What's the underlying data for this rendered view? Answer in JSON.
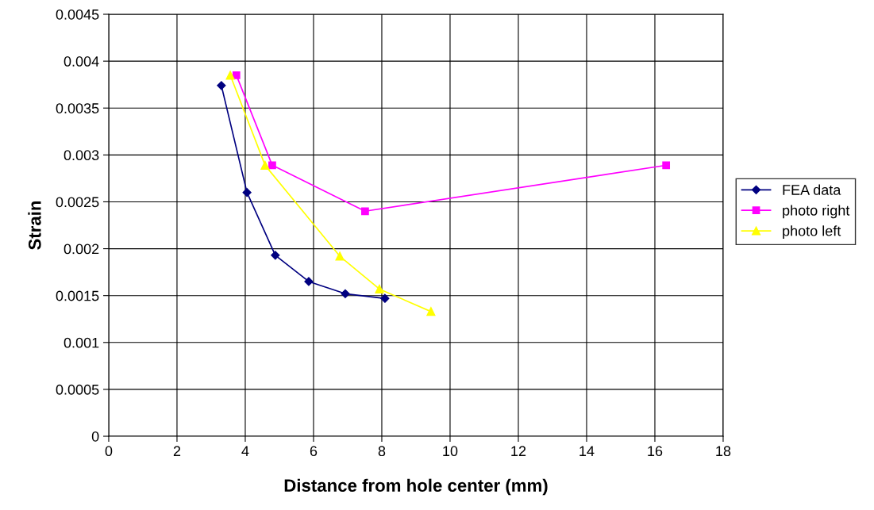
{
  "chart_data": {
    "type": "line",
    "xlabel": "Distance from hole center (mm)",
    "ylabel": "Strain",
    "xlim": [
      0,
      18
    ],
    "xticks": [
      0,
      2,
      4,
      6,
      8,
      10,
      12,
      14,
      16,
      18
    ],
    "ylim": [
      0,
      0.0045
    ],
    "yticks": [
      0,
      0.0005,
      0.001,
      0.0015,
      0.002,
      0.0025,
      0.003,
      0.0035,
      0.004,
      0.0045
    ],
    "grid": true,
    "legend": "right",
    "line_style": "solid",
    "series": [
      {
        "name": "FEA data",
        "color": "#000080",
        "marker": "diamond",
        "x": [
          3.3,
          4.05,
          4.88,
          5.86,
          6.93,
          8.09
        ],
        "values": [
          0.00374,
          0.0026,
          0.00193,
          0.00165,
          0.00152,
          0.00147
        ]
      },
      {
        "name": "photo right",
        "color": "#ff00ff",
        "marker": "square",
        "x": [
          3.74,
          4.79,
          7.51,
          16.33
        ],
        "values": [
          0.00385,
          0.00289,
          0.0024,
          0.00289
        ]
      },
      {
        "name": "photo left",
        "color": "#ffff00",
        "marker": "triangle",
        "x": [
          3.56,
          4.58,
          6.77,
          7.93,
          9.44
        ],
        "values": [
          0.00385,
          0.00289,
          0.00192,
          0.00157,
          0.00133
        ]
      }
    ]
  }
}
